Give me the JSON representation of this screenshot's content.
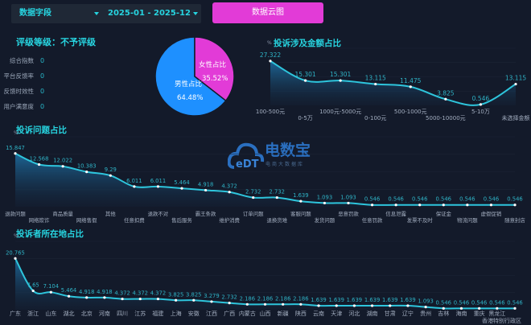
{
  "toolbar": {
    "field_select": "数据字段",
    "date_range": "2025-01 - 2025-12",
    "cloud_button": "数据云图"
  },
  "rating": {
    "title": "评级等级：不予评级",
    "metrics": [
      {
        "label": "综合指数",
        "value": "0"
      },
      {
        "label": "平台反馈率",
        "value": "0"
      },
      {
        "label": "反馈时效性",
        "value": "0"
      },
      {
        "label": "用户满意度",
        "value": "0"
      }
    ]
  },
  "gender_pie": {
    "type": "pie",
    "slices": [
      {
        "label": "男性占比",
        "value": 64.48,
        "display": "64.48%",
        "color": "#1e90ff"
      },
      {
        "label": "女性占比",
        "value": 35.52,
        "display": "35.52%",
        "color": "#e23bd7"
      }
    ]
  },
  "watermark": {
    "name": "电数宝",
    "sub": "电商大数据库",
    "logo": "eDT"
  },
  "colors": {
    "accent": "#27d4e0",
    "line": "#2ec5dc",
    "magenta": "#e23bd7",
    "background": "#131a2a"
  },
  "chart_data": [
    {
      "type": "area",
      "title": "投诉涉及金额占比",
      "unit": "%",
      "categories": [
        "100-500元",
        "0-5万",
        "1000元-5000元",
        "0-100元",
        "500-1000元",
        "5000-10000元",
        "5-10万",
        "未选择金额"
      ],
      "values": [
        27.322,
        15.301,
        15.301,
        13.115,
        11.475,
        3.825,
        0.546,
        13.115
      ]
    },
    {
      "type": "area",
      "title": "投诉问题占比",
      "unit": "%",
      "categories": [
        "退款问题",
        "网络欺诈",
        "商品质量",
        "网络售假",
        "其他",
        "任意扣费",
        "退款不对",
        "售后服务",
        "霸王条款",
        "维护消费",
        "订单问题",
        "退换货难",
        "客服问题",
        "发货问题",
        "恶意罚款",
        "任意罚款",
        "信息泄露",
        "发票不及时",
        "保证金",
        "物流问题",
        "虚假促销",
        "随意封店"
      ],
      "values": [
        15.847,
        12.568,
        12.022,
        10.383,
        9.29,
        6.011,
        6.011,
        5.464,
        4.918,
        4.372,
        2.732,
        2.732,
        1.639,
        1.093,
        1.093,
        0.546,
        0.546,
        0.546,
        0.546,
        0.546,
        0.546,
        0.546
      ]
    },
    {
      "type": "area",
      "title": "投诉者所在地占比",
      "unit": "%",
      "categories": [
        "广东",
        "浙江",
        "山东",
        "湖北",
        "北京",
        "河南",
        "四川",
        "江苏",
        "福建",
        "上海",
        "安徽",
        "江西",
        "广西",
        "内蒙古",
        "山西",
        "新疆",
        "陕西",
        "云南",
        "天津",
        "河北",
        "湖南",
        "甘肃",
        "辽宁",
        "贵州",
        "吉林",
        "海南",
        "重庆",
        "黑龙江",
        "香港特别行政区"
      ],
      "values": [
        20.765,
        7.65,
        7.104,
        5.464,
        4.918,
        4.918,
        4.372,
        4.372,
        4.372,
        3.825,
        3.825,
        3.279,
        2.732,
        2.186,
        2.186,
        2.186,
        2.186,
        1.639,
        1.639,
        1.639,
        1.639,
        1.639,
        1.639,
        1.093,
        0.546,
        0.546,
        0.546,
        0.546,
        0.546
      ]
    }
  ]
}
